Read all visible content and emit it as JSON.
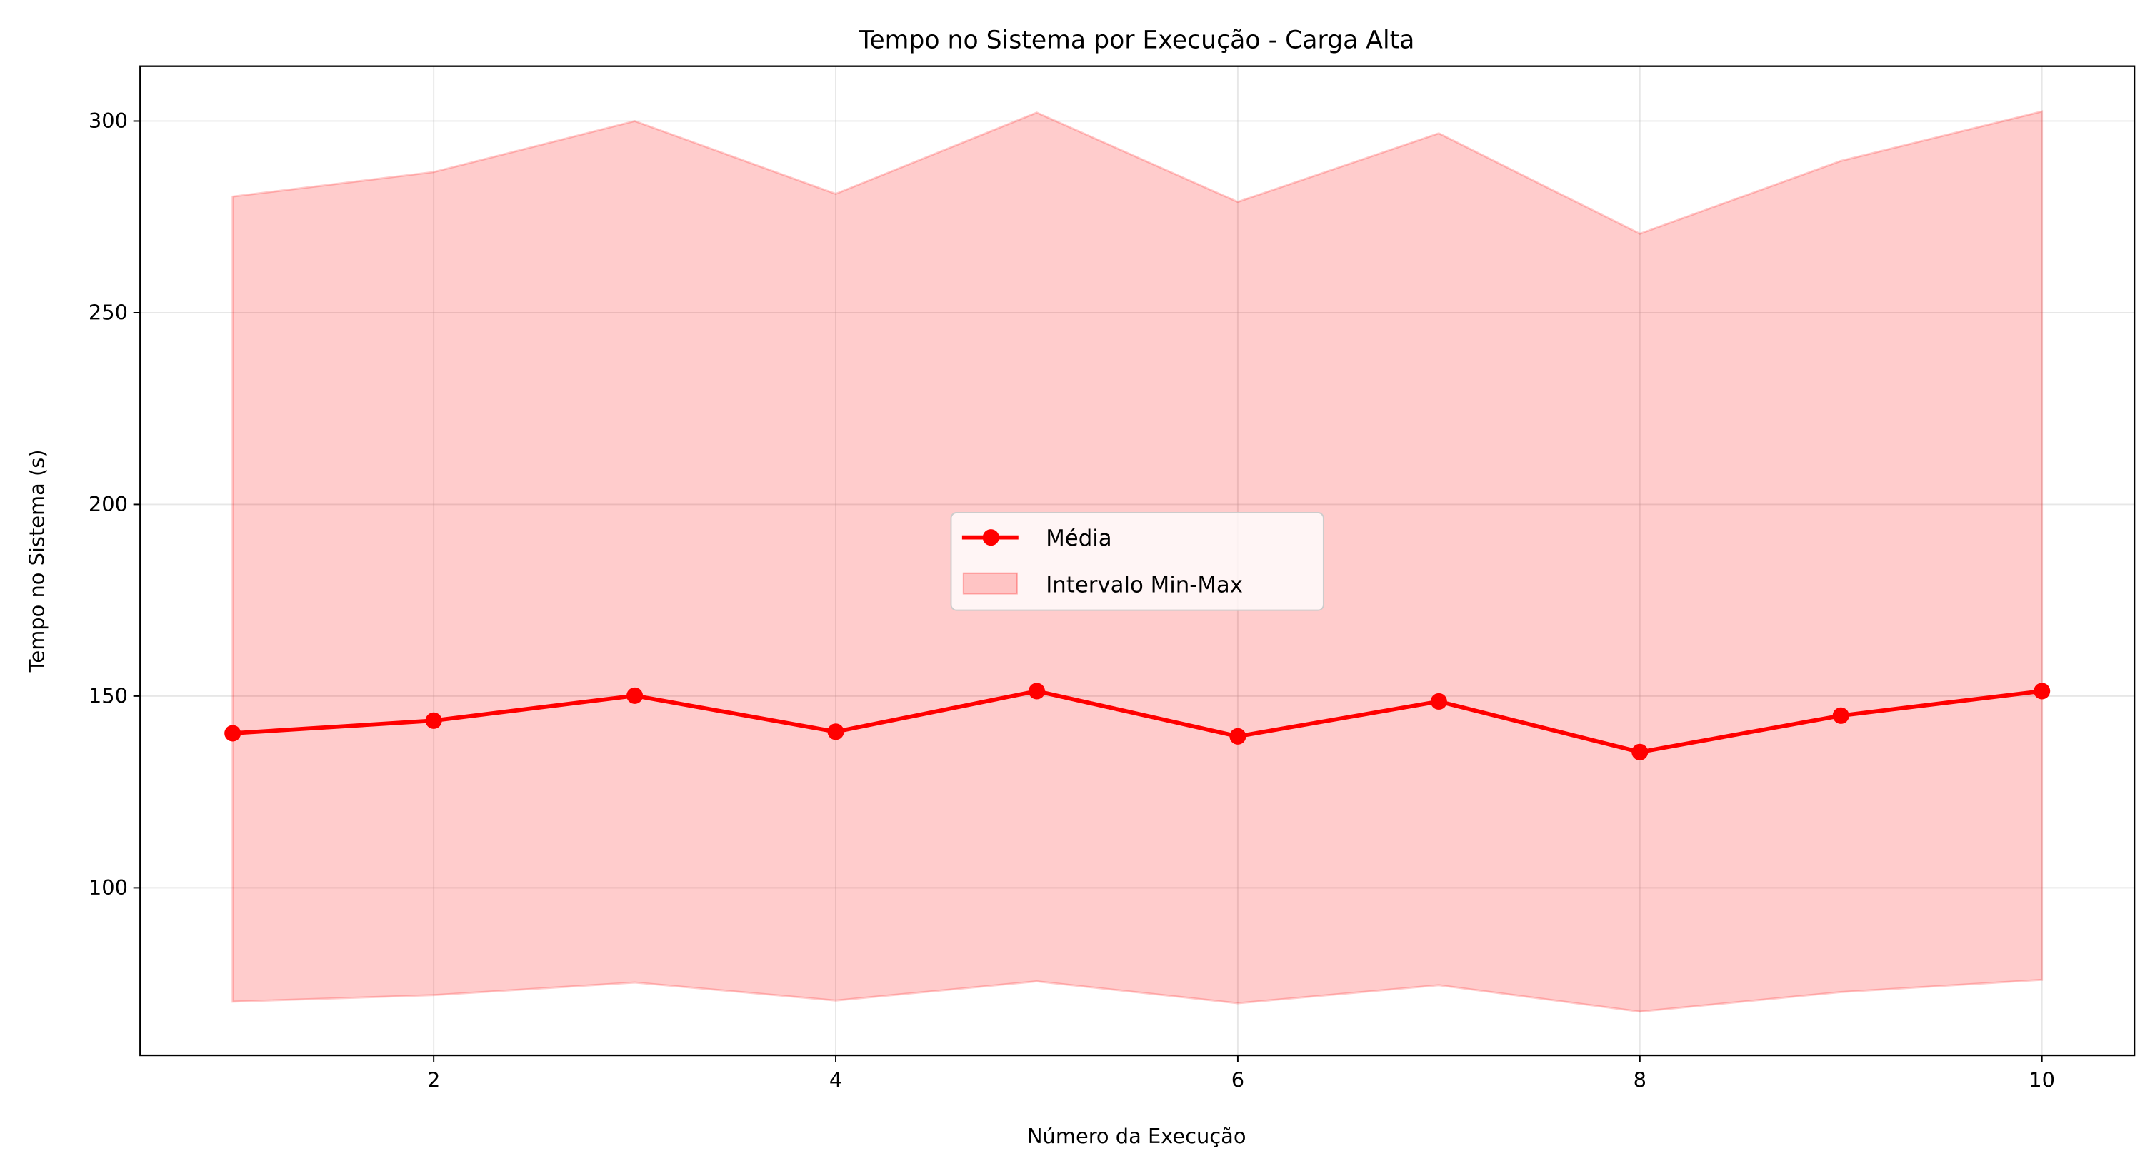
{
  "chart_data": {
    "type": "line",
    "title": "Tempo no Sistema por Execução - Carga Alta",
    "xlabel": "Número da Execução",
    "ylabel": "Tempo no Sistema (s)",
    "xlim": [
      0.54,
      10.46
    ],
    "ylim": [
      56.3,
      314.3
    ],
    "xticks": [
      2,
      4,
      6,
      8,
      10
    ],
    "yticks": [
      100,
      150,
      200,
      250,
      300
    ],
    "grid": true,
    "legend_position": "center",
    "x": [
      1,
      2,
      3,
      4,
      5,
      6,
      7,
      8,
      9,
      10
    ],
    "series": [
      {
        "name": "Média",
        "type": "line",
        "color": "#ff0000",
        "values": [
          140.3,
          143.6,
          150.1,
          140.7,
          151.3,
          139.5,
          148.6,
          135.4,
          144.9,
          151.3
        ]
      },
      {
        "name": "Intervalo Min-Max",
        "type": "area",
        "color": "#ff0000",
        "alpha": 0.2,
        "min": [
          70.3,
          72.0,
          75.3,
          70.6,
          75.6,
          69.9,
          74.6,
          67.7,
          72.8,
          76.0
        ],
        "max": [
          280.3,
          286.7,
          300.0,
          281.0,
          302.2,
          278.9,
          296.8,
          270.6,
          289.6,
          302.5
        ]
      }
    ]
  }
}
